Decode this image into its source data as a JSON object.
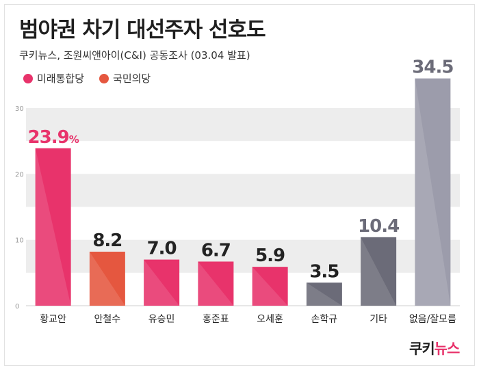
{
  "header": {
    "title": "범야권 차기 대선주자 선호도",
    "subtitle": "쿠키뉴스, 조원씨앤아이(C&I) 공동조사 (03.04 발표)"
  },
  "legend": [
    {
      "label": "미래통합당",
      "color": "#e8336b"
    },
    {
      "label": "국민의당",
      "color": "#e5573f"
    }
  ],
  "logo": {
    "main": "쿠키",
    "accent": "뉴스"
  },
  "colors": {
    "pink": "#e8336b",
    "red": "#e5573f",
    "slate": "#6b6b78",
    "light_slate": "#9c9cab",
    "band": "#ededed",
    "label_dark": "#222222",
    "label_accent": "#e8336b"
  },
  "chart_data": {
    "type": "bar",
    "categories": [
      "황교안",
      "안철수",
      "유승민",
      "홍준표",
      "오세훈",
      "손학규",
      "기타",
      "없음/잘모름"
    ],
    "values": [
      23.9,
      8.2,
      7.0,
      6.7,
      5.9,
      3.5,
      10.4,
      34.5
    ],
    "value_labels": [
      "23.9",
      "8.2",
      "7.0",
      "6.7",
      "5.9",
      "3.5",
      "10.4",
      "34.5"
    ],
    "value_suffix": [
      "%",
      "",
      "",
      "",
      "",
      "",
      "",
      ""
    ],
    "bar_colors": [
      "pink",
      "red",
      "pink",
      "pink",
      "pink",
      "slate",
      "slate",
      "light_slate"
    ],
    "label_colors": [
      "label_accent",
      "label_dark",
      "label_dark",
      "label_dark",
      "label_dark",
      "label_dark",
      "slate",
      "slate"
    ],
    "yticks": [
      "0",
      "10",
      "20",
      "30"
    ],
    "ylim": [
      0,
      30
    ],
    "grid": "alternating-bands"
  }
}
